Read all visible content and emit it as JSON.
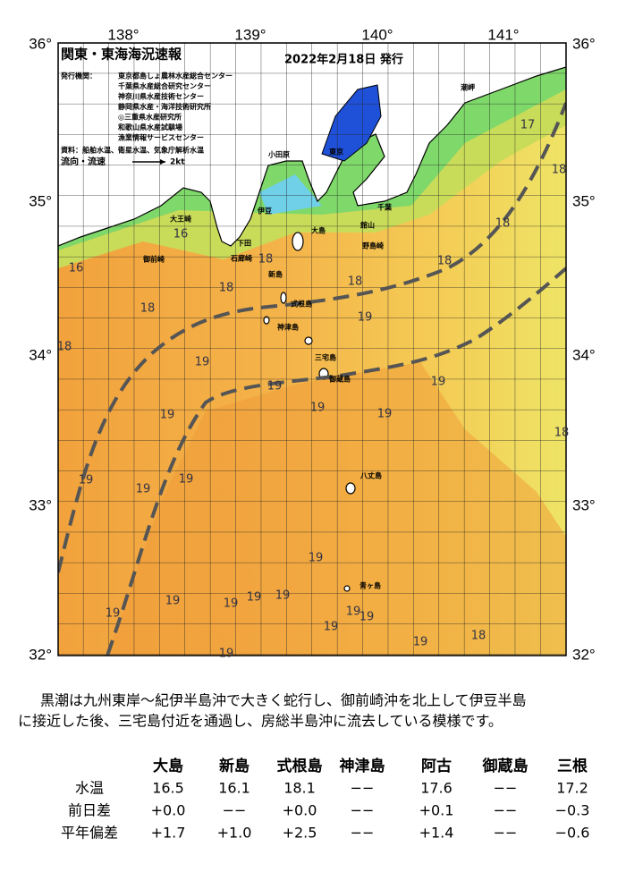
{
  "map": {
    "title": "関東・東海海況速報",
    "date": "2022年2月18日 発行",
    "issuer_label": "発行機関：",
    "issuers": [
      "東京都島しょ農林水産総合センター",
      "千葉県水産総合研究センター",
      "神奈川県水産技術センター",
      "静岡県水産・海洋技術研究所",
      "◎三重県水産研究所",
      "和歌山県水産試験場",
      "漁業情報サービスセンター"
    ],
    "source": "資料：船舶水温、衛星水温、気象庁解析水温",
    "legend": "流向・流速",
    "legend_scale": "2kt",
    "lon_labels": [
      "138°",
      "139°",
      "140°",
      "141°"
    ],
    "lat_labels": [
      "36°",
      "35°",
      "34°",
      "33°",
      "32°"
    ],
    "places": [
      "大島",
      "新島",
      "式根島",
      "神津島",
      "三宅島",
      "御蔵島",
      "八丈島",
      "青ヶ島",
      "東京",
      "千葉",
      "館山",
      "野島崎",
      "小田原",
      "伊豆",
      "下田",
      "石廊崎",
      "御前崎",
      "大王崎",
      "潮岬"
    ],
    "contour_labels": [
      "17",
      "18",
      "18",
      "18",
      "16",
      "16",
      "18",
      "18",
      "18",
      "18",
      "19",
      "18",
      "19",
      "19",
      "19",
      "19",
      "19",
      "19",
      "18",
      "19",
      "19",
      "19",
      "19",
      "19",
      "19",
      "19",
      "19",
      "19",
      "19",
      "19",
      "19",
      "18",
      "19",
      "19"
    ]
  },
  "description": [
    "黒潮は九州東岸～紀伊半島沖で大きく蛇行し、御前崎沖を北上して伊豆半島",
    "に接近した後、三宅島付近を通過し、房総半島沖に流去している模様です。"
  ],
  "table": {
    "columns": [
      "大島",
      "新島",
      "式根島",
      "神津島",
      "阿古",
      "御蔵島",
      "三根"
    ],
    "rows": [
      {
        "label": "水温",
        "values": [
          "16.5",
          "16.1",
          "18.1",
          "−−",
          "17.6",
          "−−",
          "17.2"
        ]
      },
      {
        "label": "前日差",
        "values": [
          "+0.0",
          "−−",
          "+0.0",
          "−−",
          "+0.1",
          "−−",
          "−0.3"
        ]
      },
      {
        "label": "平年偏差",
        "values": [
          "+1.7",
          "+1.0",
          "+2.5",
          "−−",
          "+1.4",
          "−−",
          "−0.6"
        ]
      }
    ]
  }
}
